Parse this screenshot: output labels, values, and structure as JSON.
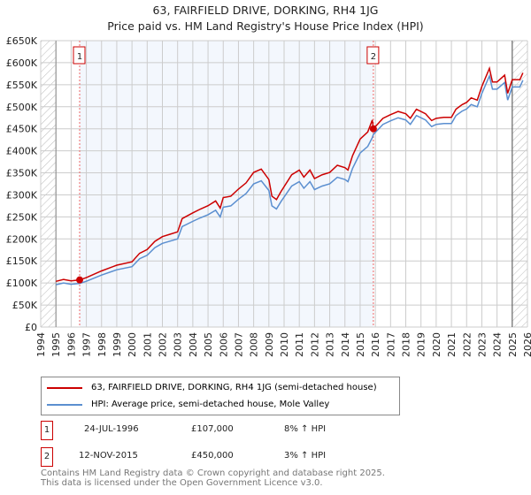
{
  "chart_data": {
    "type": "line",
    "title": "63, FAIRFIELD DRIVE, DORKING, RH4 1JG",
    "subtitle": "Price paid vs. HM Land Registry's House Price Index (HPI)",
    "xlim": [
      1994,
      2026
    ],
    "ylim": [
      0,
      650000
    ],
    "x_ticks": [
      1994,
      1995,
      1996,
      1997,
      1998,
      1999,
      2000,
      2001,
      2002,
      2003,
      2004,
      2005,
      2006,
      2007,
      2008,
      2009,
      2010,
      2011,
      2012,
      2013,
      2014,
      2015,
      2016,
      2017,
      2018,
      2019,
      2020,
      2021,
      2022,
      2023,
      2024,
      2025,
      2026
    ],
    "y_ticks": [
      {
        "v": 0,
        "label": "£0"
      },
      {
        "v": 50000,
        "label": "£50K"
      },
      {
        "v": 100000,
        "label": "£100K"
      },
      {
        "v": 150000,
        "label": "£150K"
      },
      {
        "v": 200000,
        "label": "£200K"
      },
      {
        "v": 250000,
        "label": "£250K"
      },
      {
        "v": 300000,
        "label": "£300K"
      },
      {
        "v": 350000,
        "label": "£350K"
      },
      {
        "v": 400000,
        "label": "£400K"
      },
      {
        "v": 450000,
        "label": "£450K"
      },
      {
        "v": 500000,
        "label": "£500K"
      },
      {
        "v": 550000,
        "label": "£550K"
      },
      {
        "v": 600000,
        "label": "£600K"
      },
      {
        "v": 650000,
        "label": "£650K"
      }
    ],
    "grid": true,
    "series": [
      {
        "name": "63, FAIRFIELD DRIVE, DORKING, RH4 1JG (semi-detached house)",
        "color": "#cc0000",
        "x": [
          1995,
          1995.5,
          1996,
          1996.56,
          1997,
          1998,
          1999,
          2000,
          2000.5,
          2001,
          2001.5,
          2002,
          2002.5,
          2003,
          2003.3,
          2004,
          2004.5,
          2005,
          2005.5,
          2005.8,
          2006,
          2006.5,
          2007,
          2007.5,
          2008,
          2008.5,
          2009,
          2009.2,
          2009.5,
          2009.8,
          2010.5,
          2011,
          2011.3,
          2011.7,
          2012,
          2012.5,
          2013,
          2013.5,
          2014,
          2014.2,
          2014.5,
          2015,
          2015.5,
          2015.8,
          2015.87,
          2016.5,
          2017,
          2017.5,
          2018,
          2018.3,
          2018.7,
          2019.3,
          2019.7,
          2020,
          2020.5,
          2021,
          2021.3,
          2021.7,
          2022,
          2022.3,
          2022.7,
          2023,
          2023.5,
          2023.7,
          2024,
          2024.5,
          2024.7,
          2025,
          2025.5,
          2025.7
        ],
        "y": [
          103700,
          108000,
          104800,
          107000,
          112300,
          127400,
          140400,
          148000,
          167400,
          176000,
          194400,
          205200,
          210600,
          216000,
          246200,
          259200,
          267800,
          275400,
          286200,
          270000,
          293800,
          297000,
          313200,
          327200,
          351000,
          358600,
          334800,
          297000,
          289400,
          307800,
          345600,
          356400,
          340200,
          356400,
          337000,
          345600,
          351000,
          367200,
          361800,
          356400,
          388800,
          426600,
          442800,
          470000,
          450000,
          473800,
          482000,
          489300,
          484100,
          473800,
          494400,
          484100,
          468700,
          473800,
          475900,
          475900,
          494400,
          504700,
          509900,
          520200,
          515000,
          545900,
          587100,
          556200,
          556200,
          571700,
          530500,
          561400,
          561400,
          576800
        ]
      },
      {
        "name": "HPI: Average price, semi-detached house, Mole Valley",
        "color": "#5b8fd0",
        "x": [
          1995,
          1995.5,
          1996,
          1996.56,
          1997,
          1998,
          1999,
          2000,
          2000.5,
          2001,
          2001.5,
          2002,
          2002.5,
          2003,
          2003.3,
          2004,
          2004.5,
          2005,
          2005.5,
          2005.8,
          2006,
          2006.5,
          2007,
          2007.5,
          2008,
          2008.5,
          2009,
          2009.2,
          2009.5,
          2009.8,
          2010.5,
          2011,
          2011.3,
          2011.7,
          2012,
          2012.5,
          2013,
          2013.5,
          2014,
          2014.2,
          2014.5,
          2015,
          2015.5,
          2015.8,
          2015.87,
          2016.5,
          2017,
          2017.5,
          2018,
          2018.3,
          2018.7,
          2019.3,
          2019.7,
          2020,
          2020.5,
          2021,
          2021.3,
          2021.7,
          2022,
          2022.3,
          2022.7,
          2023,
          2023.5,
          2023.7,
          2024,
          2024.5,
          2024.7,
          2025,
          2025.5,
          2025.7
        ],
        "y": [
          96000,
          100000,
          97000,
          99000,
          104000,
          118000,
          130000,
          137000,
          155000,
          163000,
          180000,
          190000,
          195000,
          200000,
          228000,
          240000,
          248000,
          255000,
          265000,
          250000,
          272000,
          275000,
          290000,
          303000,
          325000,
          332000,
          310000,
          275000,
          268000,
          285000,
          320000,
          330000,
          315000,
          330000,
          312000,
          320000,
          325000,
          340000,
          335000,
          330000,
          360000,
          395000,
          410000,
          430000,
          437000,
          460000,
          468000,
          475000,
          470000,
          460000,
          480000,
          470000,
          455000,
          460000,
          462000,
          462000,
          480000,
          490000,
          495000,
          505000,
          500000,
          530000,
          570000,
          540000,
          540000,
          555000,
          515000,
          545000,
          545000,
          560000
        ]
      }
    ],
    "shaded_range": [
      1996.56,
      2015.87
    ],
    "hatched_ranges": [
      [
        1994,
        1995
      ],
      [
        2025,
        2026
      ]
    ],
    "annotations": [
      {
        "id": "1",
        "x": 1996.56,
        "y": 107000
      },
      {
        "id": "2",
        "x": 2015.87,
        "y": 450000
      }
    ],
    "legend": "below"
  },
  "transactions": [
    {
      "id": "1",
      "date": "24-JUL-1996",
      "price": "£107,000",
      "hpi": "8% ↑ HPI"
    },
    {
      "id": "2",
      "date": "12-NOV-2015",
      "price": "£450,000",
      "hpi": "3% ↑ HPI"
    }
  ],
  "footer": [
    "Contains HM Land Registry data © Crown copyright and database right 2025.",
    "This data is licensed under the Open Government Licence v3.0."
  ]
}
